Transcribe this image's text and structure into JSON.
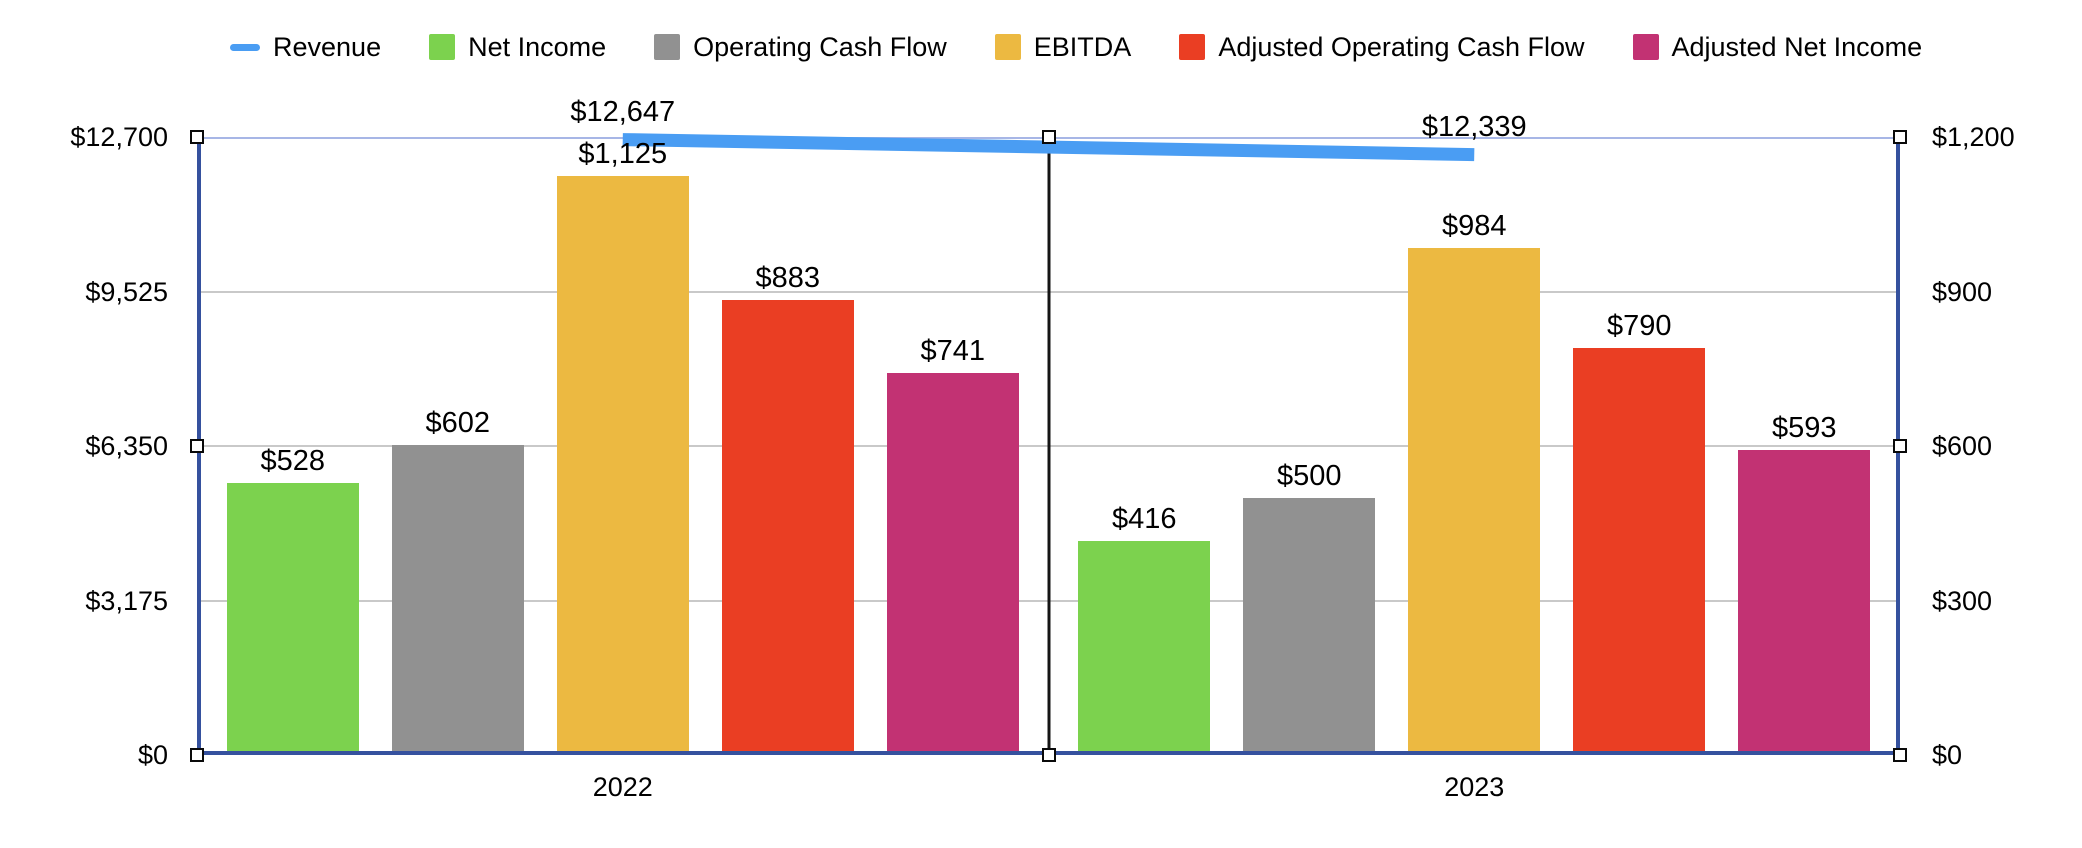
{
  "legend": [
    {
      "label": "Revenue",
      "marker": "line",
      "color": "#4A9DF3"
    },
    {
      "label": "Net Income",
      "marker": "square",
      "color": "#7CD24E"
    },
    {
      "label": "Operating Cash Flow",
      "marker": "square",
      "color": "#919191"
    },
    {
      "label": "EBITDA",
      "marker": "square",
      "color": "#ECB941"
    },
    {
      "label": "Adjusted Operating Cash Flow",
      "marker": "square",
      "color": "#EA3E23"
    },
    {
      "label": "Adjusted Net Income",
      "marker": "square",
      "color": "#C23273"
    }
  ],
  "chart_data": {
    "type": "bar",
    "title": "",
    "categories": [
      "2022",
      "2023"
    ],
    "series": [
      {
        "name": "Net Income",
        "type": "bar",
        "color": "#7CD24E",
        "axis": "right",
        "values": [
          528,
          416
        ],
        "labels": [
          "$528",
          "$416"
        ]
      },
      {
        "name": "Operating Cash Flow",
        "type": "bar",
        "color": "#919191",
        "axis": "right",
        "values": [
          602,
          500
        ],
        "labels": [
          "$602",
          "$500"
        ]
      },
      {
        "name": "EBITDA",
        "type": "bar",
        "color": "#ECB941",
        "axis": "right",
        "values": [
          1125,
          984
        ],
        "labels": [
          "$1,125",
          "$984"
        ]
      },
      {
        "name": "Adjusted Operating Cash Flow",
        "type": "bar",
        "color": "#EA3E23",
        "axis": "right",
        "values": [
          883,
          790
        ],
        "labels": [
          "$883",
          "$790"
        ]
      },
      {
        "name": "Adjusted Net Income",
        "type": "bar",
        "color": "#C23273",
        "axis": "right",
        "values": [
          741,
          593
        ],
        "labels": [
          "$741",
          "$593"
        ]
      }
    ],
    "line_series": {
      "name": "Revenue",
      "type": "line",
      "color": "#4A9DF3",
      "axis": "left",
      "values": [
        12647,
        12339
      ],
      "labels": [
        "$12,647",
        "$12,339"
      ]
    },
    "axes": {
      "left": {
        "min": 0,
        "max": 12700,
        "ticks": [
          "$12,700",
          "$9,525",
          "$6,350",
          "$3,175",
          "$0"
        ]
      },
      "right": {
        "min": 0,
        "max": 1200,
        "ticks": [
          "$1,200",
          "$900",
          "$600",
          "$300",
          "$0"
        ]
      }
    },
    "grid": true,
    "legend_position": "top"
  },
  "colors": {
    "plot_border": "#35519E",
    "top_gridline": "#A7B6E6",
    "gridline": "#C9C9C9",
    "separator": "#141414",
    "background": "#FFFFFF",
    "handle_fill": "#FFFFFF",
    "handle_border": "#0A0A0A"
  }
}
